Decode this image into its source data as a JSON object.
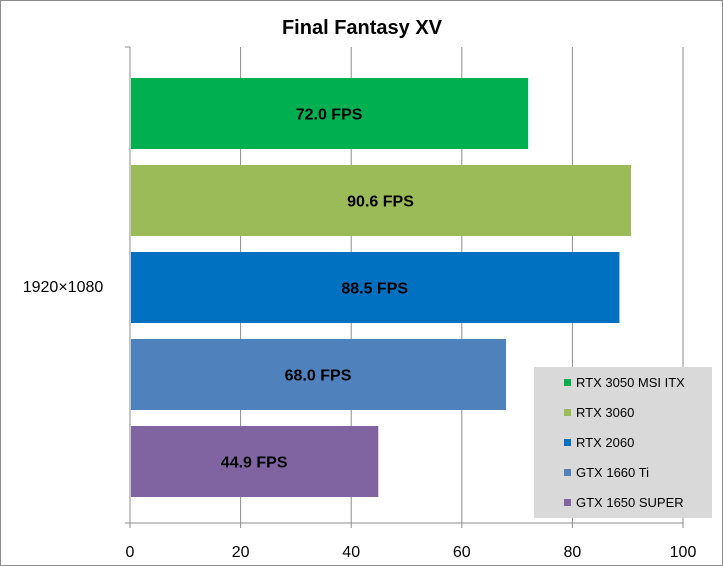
{
  "chart_data": {
    "type": "bar",
    "orientation": "horizontal",
    "title": "Final Fantasy XV",
    "categories": [
      "1920×1080"
    ],
    "xlim": [
      0,
      100
    ],
    "x_ticks": [
      0,
      20,
      40,
      60,
      80,
      100
    ],
    "grid": true,
    "legend_position": "bottom-right",
    "series": [
      {
        "name": "RTX 3050 MSI ITX",
        "values": [
          72.0
        ],
        "label": "72.0 FPS",
        "color": "#00b050"
      },
      {
        "name": "RTX 3060",
        "values": [
          90.6
        ],
        "label": "90.6 FPS",
        "color": "#9bbb59"
      },
      {
        "name": "RTX 2060",
        "values": [
          88.5
        ],
        "label": "88.5 FPS",
        "color": "#0070c0"
      },
      {
        "name": "GTX 1660 Ti",
        "values": [
          68.0
        ],
        "label": "68.0 FPS",
        "color": "#4f81bd"
      },
      {
        "name": "GTX 1650 SUPER",
        "values": [
          44.9
        ],
        "label": "44.9 FPS",
        "color": "#8064a2"
      }
    ]
  }
}
